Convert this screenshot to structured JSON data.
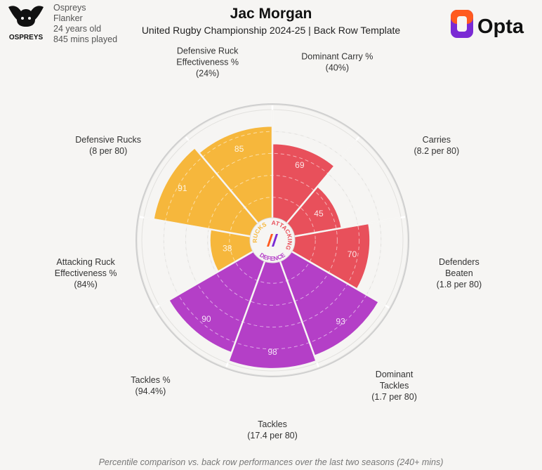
{
  "header": {
    "club": "Ospreys",
    "position": "Flanker",
    "age": "24 years old",
    "minutes": "845 mins played",
    "title": "Jac Morgan",
    "subtitle": "United Rugby Championship 2024-25 | Back Row Template",
    "club_logo_text": "OSPREYS",
    "brand": "Opta"
  },
  "footer": {
    "note": "Percentile comparison vs. back row performances over the last two seasons (240+ mins)"
  },
  "colors": {
    "attacking": "#e8505b",
    "defence": "#b43fc7",
    "rucks": "#f6b73c",
    "grid": "#ffffff",
    "background": "#f6f5f3"
  },
  "chart_data": {
    "type": "polar-bar",
    "title": "Jac Morgan",
    "range": [
      0,
      100
    ],
    "groups": [
      {
        "name": "ATTACKING",
        "color": "#e8505b"
      },
      {
        "name": "DEFENCE",
        "color": "#b43fc7"
      },
      {
        "name": "RUCKS",
        "color": "#f6b73c"
      }
    ],
    "metrics": [
      {
        "name": "Dominant Carry %",
        "detail": "(40%)",
        "percentile": 69,
        "group": "ATTACKING"
      },
      {
        "name": "Carries",
        "detail": "(8.2 per 80)",
        "percentile": 45,
        "group": "ATTACKING"
      },
      {
        "name": "Defenders Beaten",
        "detail": "(1.8 per 80)",
        "percentile": 70,
        "group": "ATTACKING"
      },
      {
        "name": "Dominant Tackles",
        "detail": "(1.7 per 80)",
        "percentile": 93,
        "group": "DEFENCE"
      },
      {
        "name": "Tackles",
        "detail": "(17.4 per 80)",
        "percentile": 98,
        "group": "DEFENCE"
      },
      {
        "name": "Tackles %",
        "detail": "(94.4%)",
        "percentile": 90,
        "group": "DEFENCE"
      },
      {
        "name": "Attacking Ruck Effectiveness %",
        "detail": "(84%)",
        "percentile": 38,
        "group": "RUCKS"
      },
      {
        "name": "Defensive Rucks",
        "detail": "(8 per 80)",
        "percentile": 91,
        "group": "RUCKS"
      },
      {
        "name": "Defensive Ruck Effectiveness %",
        "detail": "(24%)",
        "percentile": 85,
        "group": "RUCKS"
      }
    ]
  }
}
